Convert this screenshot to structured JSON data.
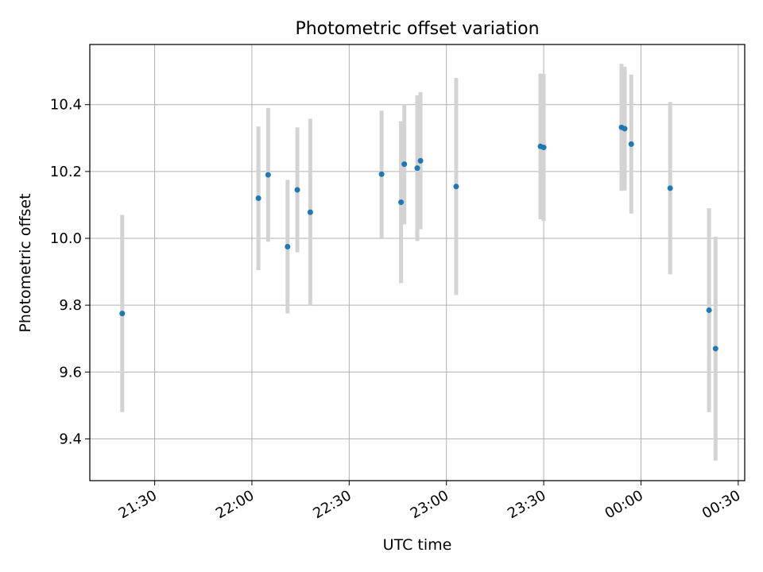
{
  "chart_data": {
    "type": "scatter",
    "title": "Photometric offset variation",
    "xlabel": "UTC time",
    "ylabel": "Photometric offset",
    "x_axis": {
      "kind": "time",
      "start": "21:10",
      "end": "00:32",
      "ticks": [
        "21:30",
        "22:00",
        "22:30",
        "23:00",
        "23:30",
        "00:00",
        "00:30"
      ]
    },
    "ylim": [
      9.275,
      10.58
    ],
    "y_ticks": [
      "9.4",
      "9.6",
      "9.8",
      "10.0",
      "10.2",
      "10.4"
    ],
    "grid": true,
    "colors": {
      "point": "#1f77b4",
      "errorbar": "#d3d3d3",
      "grid": "#b0b0b0"
    },
    "series": [
      {
        "points": [
          {
            "time": "21:20",
            "value": 9.775,
            "err": 0.295
          },
          {
            "time": "22:02",
            "value": 10.12,
            "err": 0.215
          },
          {
            "time": "22:05",
            "value": 10.19,
            "err": 0.2
          },
          {
            "time": "22:11",
            "value": 9.975,
            "err": 0.2
          },
          {
            "time": "22:14",
            "value": 10.145,
            "err": 0.187
          },
          {
            "time": "22:18",
            "value": 10.078,
            "err": 0.28
          },
          {
            "time": "22:40",
            "value": 10.192,
            "err": 0.19
          },
          {
            "time": "22:46",
            "value": 10.108,
            "err": 0.242
          },
          {
            "time": "22:47",
            "value": 10.222,
            "err": 0.18
          },
          {
            "time": "22:51",
            "value": 10.21,
            "err": 0.218
          },
          {
            "time": "22:52",
            "value": 10.232,
            "err": 0.205
          },
          {
            "time": "23:03",
            "value": 10.155,
            "err": 0.325
          },
          {
            "time": "23:29",
            "value": 10.275,
            "err": 0.218
          },
          {
            "time": "23:30",
            "value": 10.272,
            "err": 0.22
          },
          {
            "time": "23:54",
            "value": 10.332,
            "err": 0.19
          },
          {
            "time": "23:55",
            "value": 10.328,
            "err": 0.185
          },
          {
            "time": "23:57",
            "value": 10.282,
            "err": 0.208
          },
          {
            "time": "00:09",
            "value": 10.15,
            "err": 0.258
          },
          {
            "time": "00:21",
            "value": 9.785,
            "err": 0.305
          },
          {
            "time": "00:23",
            "value": 9.67,
            "err": 0.335
          }
        ]
      }
    ]
  }
}
